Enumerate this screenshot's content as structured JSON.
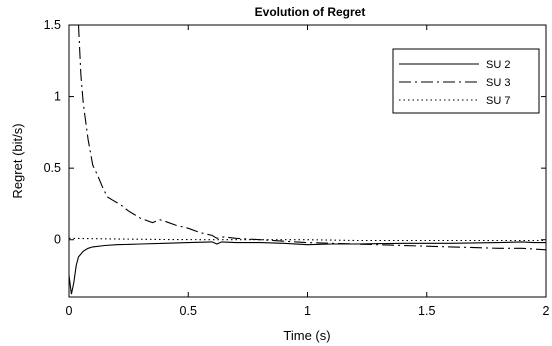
{
  "chart_data": {
    "type": "line",
    "title": "Evolution of Regret",
    "xlabel": "Time (s)",
    "ylabel": "Regret (bit/s)",
    "xlim": [
      0,
      2
    ],
    "ylim": [
      -0.4,
      1.5
    ],
    "x_ticks": [
      {
        "value": 0,
        "label": "0"
      },
      {
        "value": 0.5,
        "label": "0.5"
      },
      {
        "value": 1,
        "label": "1"
      },
      {
        "value": 1.5,
        "label": "1.5"
      },
      {
        "value": 2,
        "label": "2"
      }
    ],
    "y_ticks": [
      {
        "value": 0,
        "label": "0"
      },
      {
        "value": 0.5,
        "label": "0.5"
      },
      {
        "value": 1,
        "label": "1"
      },
      {
        "value": 1.5,
        "label": "1.5"
      }
    ],
    "grid": false,
    "legend_position": "top-right",
    "series": [
      {
        "name": "SU 2",
        "style": "solid",
        "color": "#000000",
        "x": [
          0.0,
          0.01,
          0.02,
          0.03,
          0.04,
          0.06,
          0.08,
          0.1,
          0.15,
          0.2,
          0.3,
          0.4,
          0.5,
          0.6,
          0.62,
          0.64,
          0.7,
          0.8,
          0.9,
          1.0,
          1.1,
          1.2,
          1.4,
          1.6,
          1.8,
          1.9,
          1.95,
          2.0
        ],
        "y": [
          -0.25,
          -0.38,
          -0.3,
          -0.18,
          -0.12,
          -0.08,
          -0.06,
          -0.05,
          -0.04,
          -0.035,
          -0.03,
          -0.025,
          -0.02,
          -0.015,
          -0.03,
          -0.015,
          -0.02,
          -0.02,
          -0.025,
          -0.035,
          -0.03,
          -0.03,
          -0.025,
          -0.025,
          -0.02,
          -0.015,
          -0.02,
          -0.02
        ]
      },
      {
        "name": "SU 3",
        "style": "dashdot",
        "color": "#000000",
        "x": [
          0.04,
          0.05,
          0.06,
          0.08,
          0.1,
          0.12,
          0.14,
          0.16,
          0.18,
          0.2,
          0.22,
          0.25,
          0.3,
          0.35,
          0.38,
          0.4,
          0.45,
          0.5,
          0.55,
          0.6,
          0.62,
          0.65,
          0.7,
          0.8,
          0.9,
          1.0,
          1.1,
          1.2,
          1.3,
          1.4,
          1.5,
          1.6,
          1.7,
          1.8,
          1.9,
          2.0
        ],
        "y": [
          1.5,
          1.15,
          0.95,
          0.7,
          0.52,
          0.45,
          0.37,
          0.3,
          0.28,
          0.26,
          0.24,
          0.2,
          0.15,
          0.12,
          0.14,
          0.13,
          0.1,
          0.08,
          0.05,
          0.03,
          0.01,
          0.02,
          0.01,
          0.0,
          -0.01,
          -0.02,
          -0.025,
          -0.03,
          -0.035,
          -0.04,
          -0.045,
          -0.05,
          -0.055,
          -0.06,
          -0.06,
          -0.07
        ]
      },
      {
        "name": "SU 7",
        "style": "dotted",
        "color": "#000000",
        "x": [
          0.0,
          0.2,
          0.4,
          0.6,
          0.8,
          1.0,
          1.2,
          1.4,
          1.6,
          1.8,
          2.0
        ],
        "y": [
          0.01,
          0.005,
          0.002,
          0.0,
          0.0,
          0.0,
          -0.005,
          -0.005,
          -0.005,
          -0.005,
          -0.005
        ]
      }
    ]
  }
}
